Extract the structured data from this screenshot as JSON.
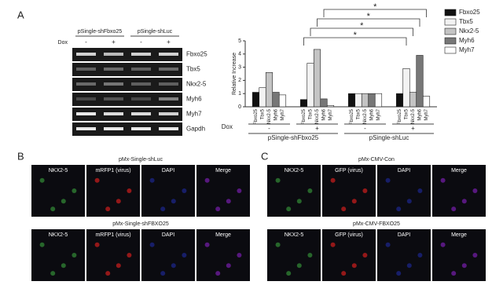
{
  "panel_labels": [
    "A",
    "B",
    "C"
  ],
  "gel": {
    "columns": [
      "pSingle-shFbxo25",
      "pSingle-shLuc"
    ],
    "row_label": "Dox",
    "lanes": [
      "-",
      "+",
      "-",
      "+"
    ],
    "bands": [
      "Fbxo25",
      "Tbx5",
      "Nkx2-5",
      "Myh6",
      "Myh7",
      "Gapdh"
    ]
  },
  "chart_data": {
    "type": "bar",
    "y_label": "Relative Increase",
    "x_label": "Dox",
    "categories": [
      "-",
      "+",
      "-",
      "+"
    ],
    "group_labels": [
      "pSingle-shFbxo25",
      "pSingle-shLuc"
    ],
    "series": [
      {
        "name": "Fbxo25",
        "color": "#111111",
        "values": [
          1.1,
          0.55,
          1.0,
          1.0
        ]
      },
      {
        "name": "Tbx5",
        "color": "#f2f2f2",
        "values": [
          1.45,
          3.3,
          1.0,
          2.9
        ]
      },
      {
        "name": "Nkx2-5",
        "color": "#c4c4c4",
        "values": [
          2.6,
          4.35,
          1.0,
          1.1
        ]
      },
      {
        "name": "Myh6",
        "color": "#777777",
        "values": [
          1.1,
          0.6,
          1.0,
          3.9
        ]
      },
      {
        "name": "Myh7",
        "color": "#ffffff",
        "values": [
          0.9,
          0.1,
          1.0,
          0.8
        ]
      }
    ],
    "ylim": [
      0,
      5
    ],
    "yticks": [
      0,
      1,
      2,
      3,
      4,
      5
    ],
    "annotations": [
      "*",
      "*",
      "*",
      "*"
    ],
    "legend": "top-right"
  },
  "microscopy": [
    {
      "title": "pMx-Single-shLuc",
      "channels": [
        "NKX2-5",
        "mRFP1 (virus)",
        "DAPI",
        "Merge"
      ]
    },
    {
      "title": "pMx-Single-shFBXO25",
      "channels": [
        "NKX2-5",
        "mRFP1 (virus)",
        "DAPI",
        "Merge"
      ]
    },
    {
      "title": "pMx-CMV-Con",
      "channels": [
        "NKX2-5",
        "GFP (virus)",
        "DAPI",
        "Merge"
      ]
    },
    {
      "title": "pMx-CMV-FBXO25",
      "channels": [
        "NKX2-5",
        "GFP (virus)",
        "DAPI",
        "Merge"
      ]
    }
  ]
}
